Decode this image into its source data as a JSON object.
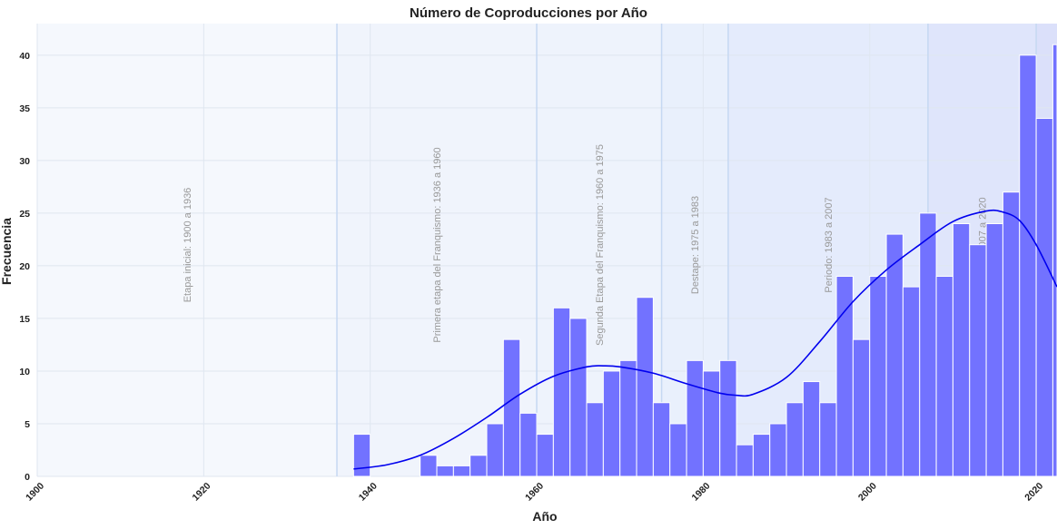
{
  "chart_data": {
    "type": "bar",
    "title": "Número de Coproducciones por Año",
    "xlabel": "Año",
    "ylabel": "Frecuencia",
    "xlim": [
      1900,
      2022.5
    ],
    "ylim": [
      0,
      43
    ],
    "x_ticks": [
      1900,
      1920,
      1940,
      1960,
      1980,
      2000,
      2020
    ],
    "y_ticks": [
      0,
      5,
      10,
      15,
      20,
      25,
      30,
      35,
      40
    ],
    "grid": true,
    "bin_width": 2,
    "bins": [
      {
        "start": 1938,
        "count": 4
      },
      {
        "start": 1946,
        "count": 2
      },
      {
        "start": 1948,
        "count": 1
      },
      {
        "start": 1950,
        "count": 1
      },
      {
        "start": 1952,
        "count": 2
      },
      {
        "start": 1954,
        "count": 5
      },
      {
        "start": 1956,
        "count": 13
      },
      {
        "start": 1958,
        "count": 6
      },
      {
        "start": 1960,
        "count": 4
      },
      {
        "start": 1962,
        "count": 16
      },
      {
        "start": 1964,
        "count": 15
      },
      {
        "start": 1966,
        "count": 7
      },
      {
        "start": 1968,
        "count": 10
      },
      {
        "start": 1970,
        "count": 11
      },
      {
        "start": 1972,
        "count": 17
      },
      {
        "start": 1974,
        "count": 7
      },
      {
        "start": 1976,
        "count": 5
      },
      {
        "start": 1978,
        "count": 11
      },
      {
        "start": 1980,
        "count": 10
      },
      {
        "start": 1982,
        "count": 11
      },
      {
        "start": 1984,
        "count": 3
      },
      {
        "start": 1986,
        "count": 4
      },
      {
        "start": 1988,
        "count": 5
      },
      {
        "start": 1990,
        "count": 7
      },
      {
        "start": 1992,
        "count": 9
      },
      {
        "start": 1994,
        "count": 7
      },
      {
        "start": 1996,
        "count": 19
      },
      {
        "start": 1998,
        "count": 13
      },
      {
        "start": 2000,
        "count": 19
      },
      {
        "start": 2002,
        "count": 23
      },
      {
        "start": 2004,
        "count": 18
      },
      {
        "start": 2006,
        "count": 25
      },
      {
        "start": 2008,
        "count": 19
      },
      {
        "start": 2010,
        "count": 24
      },
      {
        "start": 2012,
        "count": 22
      },
      {
        "start": 2014,
        "count": 24
      },
      {
        "start": 2016,
        "count": 27
      },
      {
        "start": 2018,
        "count": 40
      },
      {
        "start": 2020,
        "count": 34
      },
      {
        "start": 2022,
        "count": 41
      }
    ],
    "kde_curve": {
      "x": [
        1938,
        1942,
        1946,
        1950,
        1954,
        1958,
        1962,
        1966,
        1968,
        1970,
        1974,
        1978,
        1982,
        1984,
        1986,
        1990,
        1994,
        1998,
        2002,
        2006,
        2010,
        2014,
        2016,
        2018,
        2020,
        2022.5
      ],
      "y": [
        0.7,
        1.1,
        2.0,
        3.6,
        5.6,
        7.8,
        9.5,
        10.4,
        10.5,
        10.4,
        9.8,
        8.8,
        7.9,
        7.7,
        7.8,
        9.4,
        12.8,
        16.6,
        19.6,
        22.0,
        24.2,
        25.2,
        25.1,
        24.3,
        22.0,
        18.0
      ]
    },
    "periods": [
      {
        "label": "Etapa inicial: 1900 a 1936",
        "start": 1900,
        "end": 1936,
        "color": "#f5f8fd"
      },
      {
        "label": "Primera etapa del Franquismo: 1936 a 1960",
        "start": 1936,
        "end": 1960,
        "color": "#f0f4fc"
      },
      {
        "label": "Segunda Etapa del Franquismo: 1960 a 1975",
        "start": 1960,
        "end": 1975,
        "color": "#eef3fc"
      },
      {
        "label": "Destape: 1975 a 1983",
        "start": 1975,
        "end": 1983,
        "color": "#e9f0fc"
      },
      {
        "label": "Periodo: 1983 a 2007",
        "start": 1983,
        "end": 2007,
        "color": "#e4ebfc"
      },
      {
        "label": "Periodo: 2007 a 2020",
        "start": 2007,
        "end": 2020,
        "color": "#dfe5fb"
      },
      {
        "label": "",
        "start": 2020,
        "end": 2022.5,
        "color": "#dbe0fa"
      }
    ],
    "colors": {
      "bar": "#7272ff",
      "kde": "#0000ee",
      "grid": "#dfe6f0",
      "boundary": "#c6d8f2"
    }
  }
}
